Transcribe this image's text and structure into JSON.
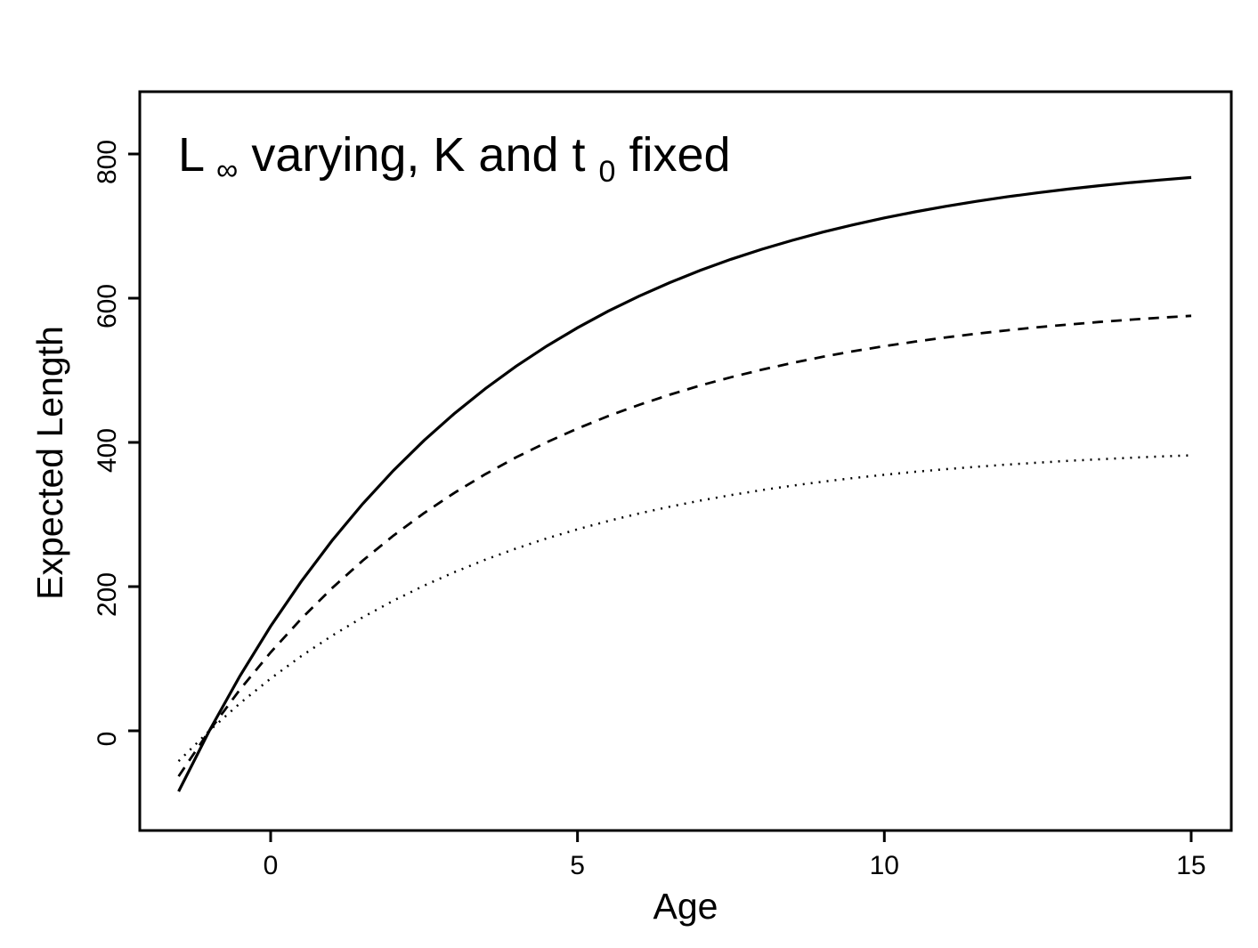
{
  "chart_data": {
    "type": "line",
    "title": "L∞ varying, K and t₀ fixed",
    "title_parts": [
      "L",
      "∞",
      " varying, K and t",
      "0",
      " fixed"
    ],
    "xlabel": "Age",
    "ylabel": "Expected Length",
    "x": [
      -1.5,
      -1,
      -0.5,
      0,
      0.5,
      1,
      1.5,
      2,
      2.5,
      3,
      3.5,
      4,
      4.5,
      5,
      5.5,
      6,
      6.5,
      7,
      7.5,
      8,
      8.5,
      9,
      9.5,
      10,
      10.5,
      11,
      11.5,
      12,
      12.5,
      13,
      13.5,
      14,
      14.5,
      15
    ],
    "series": [
      {
        "name": "solid curve (highest asymptote ≈ 800)",
        "linetype": "solid",
        "values": [
          -84.1,
          0,
          76.1,
          145,
          207.3,
          263.7,
          314.8,
          361,
          402.7,
          440.5,
          474.7,
          505.7,
          533.7,
          559,
          582,
          602.7,
          621.5,
          638.5,
          653.9,
          667.8,
          680.3,
          691.7,
          702,
          711.4,
          719.8,
          727.4,
          734.3,
          740.6,
          746.2,
          751.4,
          756,
          760.2,
          764,
          767.4
        ]
      },
      {
        "name": "dashed curve (middle asymptote ≈ 600)",
        "linetype": "dashed",
        "values": [
          -63.1,
          0,
          57.1,
          108.8,
          155.5,
          197.8,
          236.1,
          270.7,
          302,
          330.4,
          356.1,
          379.3,
          400.3,
          419.3,
          436.5,
          452,
          466.1,
          478.9,
          490.4,
          500.8,
          510.3,
          518.8,
          526.5,
          533.5,
          539.8,
          545.6,
          550.7,
          555.4,
          559.7,
          563.5,
          567,
          570.1,
          573,
          575.5
        ]
      },
      {
        "name": "dotted curve (lowest asymptote ≈ 400)",
        "linetype": "dotted",
        "values": [
          -42.1,
          0,
          38.1,
          72.5,
          103.7,
          131.9,
          157.4,
          180.5,
          201.4,
          220.3,
          237.4,
          252.8,
          266.9,
          279.5,
          291,
          301.4,
          310.8,
          319.3,
          326.9,
          333.8,
          340,
          345.6,
          350.6,
          355.1,
          359.2,
          362.9,
          366.2,
          369.2,
          371.9,
          374.4,
          376.6,
          378.6,
          380.5,
          382.1
        ]
      }
    ],
    "axes": {
      "x_ticks": [
        0,
        5,
        10,
        15
      ],
      "y_ticks": [
        0,
        200,
        400,
        600,
        800
      ]
    },
    "xlim": [
      -2.1,
      15.7
    ],
    "ylim": [
      -138,
      886
    ],
    "grid": false,
    "legend": "none",
    "colors": {
      "foreground": "#000000",
      "background": "#ffffff"
    }
  }
}
